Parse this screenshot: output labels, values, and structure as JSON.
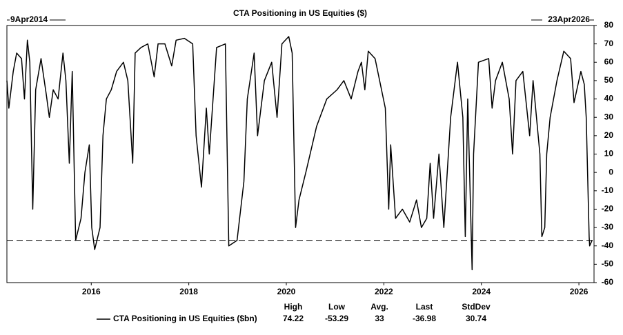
{
  "chart_data": {
    "type": "line",
    "title": "CTA Positioning in US Equities ($)",
    "start_label": "9Apr2014",
    "end_label": "23Apr2026",
    "x": [
      2014.27,
      2014.31,
      2014.4,
      2014.47,
      2014.57,
      2014.63,
      2014.69,
      2014.74,
      2014.8,
      2014.86,
      2014.97,
      2015.08,
      2015.14,
      2015.22,
      2015.32,
      2015.42,
      2015.48,
      2015.55,
      2015.61,
      2015.68,
      2015.79,
      2015.87,
      2015.96,
      2016.01,
      2016.07,
      2016.18,
      2016.24,
      2016.31,
      2016.41,
      2016.52,
      2016.66,
      2016.75,
      2016.85,
      2016.9,
      2017.02,
      2017.16,
      2017.29,
      2017.37,
      2017.51,
      2017.65,
      2017.74,
      2017.91,
      2018.08,
      2018.15,
      2018.26,
      2018.36,
      2018.42,
      2018.57,
      2018.75,
      2018.82,
      2018.99,
      2019.13,
      2019.2,
      2019.34,
      2019.41,
      2019.55,
      2019.7,
      2019.81,
      2019.91,
      2020.05,
      2020.12,
      2020.19,
      2020.26,
      2020.4,
      2020.62,
      2020.83,
      2021.04,
      2021.18,
      2021.33,
      2021.47,
      2021.54,
      2021.61,
      2021.68,
      2021.82,
      2022.03,
      2022.1,
      2022.14,
      2022.24,
      2022.38,
      2022.53,
      2022.67,
      2022.77,
      2022.88,
      2022.95,
      2023.02,
      2023.13,
      2023.23,
      2023.37,
      2023.44,
      2023.51,
      2023.62,
      2023.67,
      2023.72,
      2023.81,
      2023.84,
      2023.94,
      2024.15,
      2024.22,
      2024.29,
      2024.43,
      2024.57,
      2024.64,
      2024.71,
      2024.85,
      2024.99,
      2025.06,
      2025.2,
      2025.24,
      2025.3,
      2025.34,
      2025.41,
      2025.55,
      2025.69,
      2025.83,
      2025.9,
      2026.04,
      2026.11,
      2026.15,
      2026.21,
      2026.22,
      2026.27
    ],
    "series": [
      {
        "name": "CTA Positioning in US Equities ($bn)",
        "color": "#000000",
        "values": [
          50,
          35,
          55,
          65,
          62,
          40,
          72,
          60,
          -20,
          45,
          62,
          42,
          30,
          45,
          40,
          65,
          50,
          5,
          55,
          -37,
          -25,
          0,
          15,
          -30,
          -42,
          -30,
          20,
          40,
          45,
          55,
          60,
          50,
          5,
          65,
          68,
          70,
          52,
          70,
          70,
          58,
          72,
          73,
          70,
          20,
          -8,
          35,
          10,
          68,
          70,
          -40,
          -37,
          -5,
          40,
          65,
          20,
          50,
          60,
          30,
          70,
          74,
          65,
          -30,
          -15,
          0,
          25,
          40,
          45,
          50,
          40,
          55,
          60,
          45,
          66,
          62,
          35,
          -20,
          15,
          -25,
          -20,
          -27,
          -15,
          -30,
          -25,
          5,
          -25,
          10,
          -30,
          30,
          45,
          60,
          30,
          -35,
          40,
          -53,
          10,
          60,
          62,
          35,
          50,
          60,
          40,
          10,
          50,
          55,
          20,
          50,
          10,
          -35,
          -30,
          10,
          30,
          50,
          66,
          62,
          38,
          55,
          48,
          30,
          -35,
          -40,
          -36.98
        ]
      }
    ],
    "xlim": [
      2014.27,
      2026.31
    ],
    "xticks": [
      2016,
      2018,
      2020,
      2022,
      2024,
      2026
    ],
    "ylim": [
      -60,
      80
    ],
    "yticks": [
      -60,
      -50,
      -40,
      -30,
      -20,
      -10,
      0,
      10,
      20,
      30,
      40,
      50,
      60,
      70,
      80
    ],
    "stats": {
      "headers": [
        "High",
        "Low",
        "Avg.",
        "Last",
        "StdDev"
      ],
      "values": [
        74.22,
        -53.29,
        33,
        -36.98,
        30.74
      ]
    }
  }
}
